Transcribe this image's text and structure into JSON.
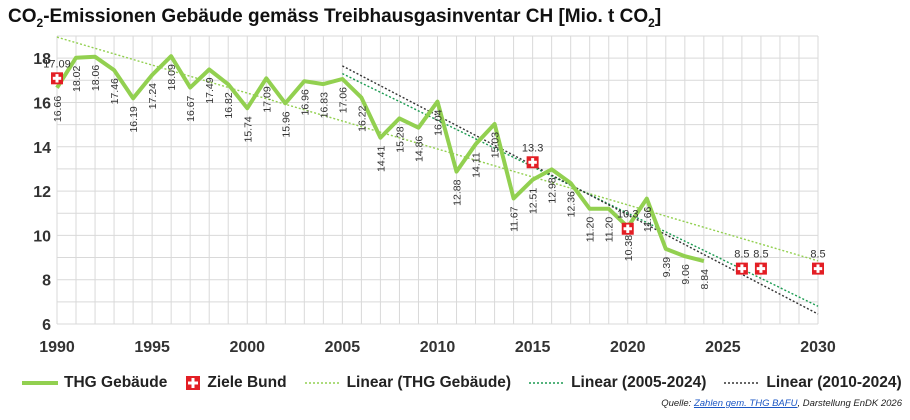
{
  "title": {
    "main": "CO",
    "sub": "2",
    "mid": "-Emissionen Gebäude gemäss Treibhausgasinventar CH [Mio. t CO",
    "sub2": "2",
    "end": "]"
  },
  "legend": {
    "thg": "THG Gebäude",
    "ziele": "Ziele Bund",
    "lin_all": "Linear (THG Gebäude)",
    "lin_2005": "Linear (2005-2024)",
    "lin_2010": "Linear (2010-2024)"
  },
  "source": {
    "prefix": "Quelle: ",
    "link": "Zahlen gem. THG BAFU",
    "suffix": ", Darstellung EnDK 2026"
  },
  "colors": {
    "thg": "#92d050",
    "ziele": "#e31e24",
    "lin_all": "#92d050",
    "lin_2005": "#1a9a50",
    "lin_2010": "#333333"
  },
  "chart_data": {
    "type": "line",
    "xlim": [
      1990,
      2030
    ],
    "ylim": [
      6,
      19
    ],
    "x_ticks": [
      1990,
      1995,
      2000,
      2005,
      2010,
      2015,
      2020,
      2025,
      2030
    ],
    "y_ticks": [
      6,
      8,
      10,
      12,
      14,
      16,
      18
    ],
    "grid": true,
    "legend_position": "bottom",
    "series": [
      {
        "name": "THG Gebäude",
        "x": [
          1990,
          1991,
          1992,
          1993,
          1994,
          1995,
          1996,
          1997,
          1998,
          1999,
          2000,
          2001,
          2002,
          2003,
          2004,
          2005,
          2006,
          2007,
          2008,
          2009,
          2010,
          2011,
          2012,
          2013,
          2014,
          2015,
          2016,
          2017,
          2018,
          2019,
          2020,
          2021,
          2022,
          2023,
          2024
        ],
        "y": [
          16.66,
          18.02,
          18.06,
          17.46,
          16.19,
          17.24,
          18.09,
          16.67,
          17.49,
          16.82,
          15.74,
          17.09,
          15.96,
          16.96,
          16.83,
          17.06,
          16.22,
          14.41,
          15.28,
          14.86,
          16.04,
          12.88,
          14.11,
          15.03,
          11.67,
          12.51,
          12.98,
          12.36,
          11.2,
          11.2,
          10.38,
          11.66,
          9.39,
          9.06,
          8.84
        ],
        "labels": [
          "16.66",
          "18.02",
          "18.06",
          "17.46",
          "16.19",
          "17.24",
          "18.09",
          "16.67",
          "17.49",
          "16.82",
          "15.74",
          "17.09",
          "15.96",
          "16.96",
          "16.83",
          "17.06",
          "16.22",
          "14.41",
          "15.28",
          "14.86",
          "16.04",
          "12.88",
          "14.11",
          "15.03",
          "11.67",
          "12.51",
          "12.98",
          "12.36",
          "11.20",
          "11.20",
          "10.38",
          "11.66",
          "9.39",
          "9.06",
          "8.84"
        ]
      },
      {
        "name": "Ziele Bund",
        "x": [
          1990,
          2015,
          2020,
          2026,
          2027,
          2030
        ],
        "y": [
          17.09,
          13.3,
          10.3,
          8.5,
          8.5,
          8.5
        ],
        "labels": [
          "17.09",
          "13.3",
          "10.3",
          "8.5",
          "8.5",
          "8.5"
        ]
      },
      {
        "name": "Linear (THG Gebäude)",
        "x": [
          1990,
          2030
        ],
        "y": [
          18.95,
          8.85
        ]
      },
      {
        "name": "Linear (2005-2024)",
        "x": [
          2005,
          2030
        ],
        "y": [
          17.3,
          6.8
        ]
      },
      {
        "name": "Linear (2010-2024)",
        "x": [
          2005,
          2030
        ],
        "y": [
          17.65,
          6.45
        ]
      }
    ]
  }
}
